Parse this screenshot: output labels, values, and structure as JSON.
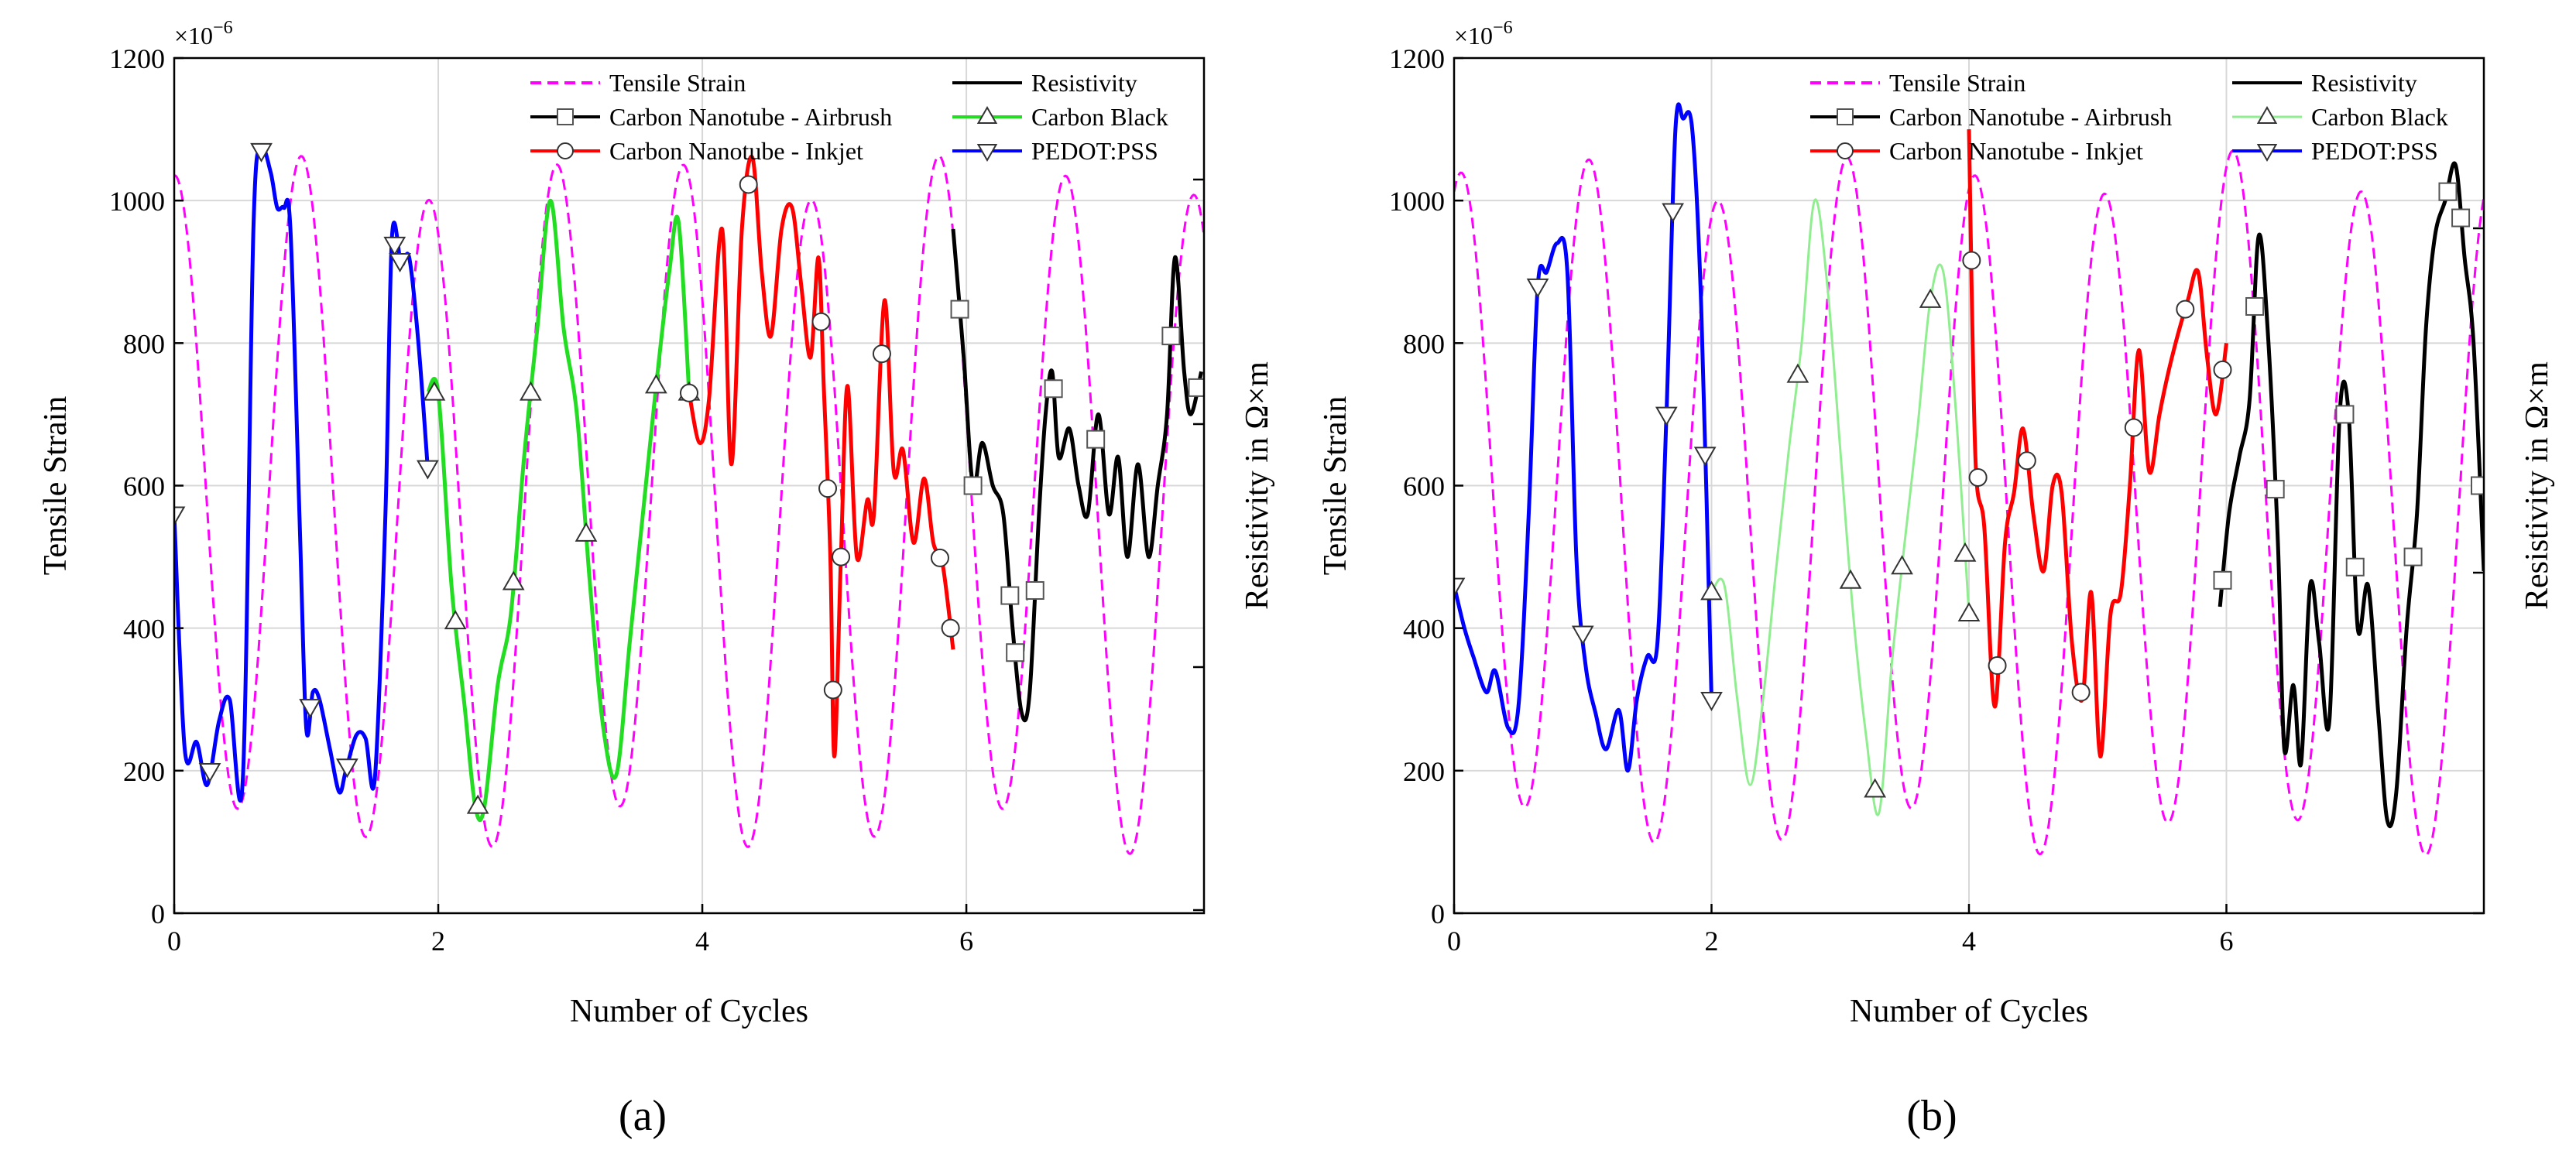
{
  "chart_data": [
    {
      "type": "line",
      "panel": "(a)",
      "xlabel": "Number of Cycles",
      "ylabel": "Tensile Strain",
      "y2label": "Resistivity in Ω×m",
      "y_multiplier": "×10",
      "y_multiplier_exp": "−6",
      "xlim": [
        0,
        7.8
      ],
      "ylim": [
        0,
        1200
      ],
      "x_ticks": [
        0,
        2,
        4,
        6
      ],
      "y_ticks": [
        0,
        200,
        400,
        600,
        800,
        1000,
        1200
      ],
      "grid": true,
      "legend": [
        {
          "label": "Tensile Strain",
          "color": "#ff00ff",
          "style": "dashed",
          "marker": "none"
        },
        {
          "label": "Resistivity",
          "color": "#000000",
          "style": "solid",
          "marker": "none"
        },
        {
          "label": "Carbon Nanotube - Airbrush",
          "color": "#000000",
          "style": "solid",
          "marker": "square"
        },
        {
          "label": "Carbon Black",
          "color": "#22dd22",
          "style": "solid",
          "marker": "triangle-up"
        },
        {
          "label": "Carbon Nanotube - Inkjet",
          "color": "#ff0000",
          "style": "solid",
          "marker": "circle"
        },
        {
          "label": "PEDOT:PSS",
          "color": "#0000ff",
          "style": "solid",
          "marker": "triangle-down"
        }
      ],
      "tensile": {
        "color": "#ff00ff",
        "amplitude": 460,
        "offset": 575,
        "period": 0.965,
        "phase": 0.0,
        "extra_amp": 35
      },
      "series": [
        {
          "name": "PEDOT:PSS",
          "color": "#0000ff",
          "marker": "triangle-down",
          "x": [
            0,
            0.08,
            0.17,
            0.25,
            0.34,
            0.42,
            0.52,
            0.6,
            0.66,
            0.73,
            0.78,
            0.83,
            0.88,
            0.95,
            1.0,
            1.05,
            1.1,
            1.18,
            1.25,
            1.3,
            1.38,
            1.45,
            1.52,
            1.6,
            1.65,
            1.72,
            1.78,
            1.85,
            1.92
          ],
          "values": [
            560,
            230,
            240,
            180,
            270,
            300,
            190,
            960,
            1070,
            1040,
            990,
            990,
            960,
            550,
            260,
            310,
            300,
            230,
            170,
            200,
            250,
            245,
            190,
            560,
            950,
            910,
            920,
            800,
            625
          ],
          "marker_x": [
            0,
            0.27,
            0.66,
            1.03,
            1.31,
            1.67,
            1.71,
            1.92
          ]
        },
        {
          "name": "Carbon Black",
          "color": "#22dd22",
          "marker": "triangle-up",
          "x": [
            1.92,
            2.0,
            2.1,
            2.2,
            2.28,
            2.35,
            2.45,
            2.55,
            2.65,
            2.75,
            2.85,
            2.95,
            3.05,
            3.15,
            3.25,
            3.35,
            3.45,
            3.55,
            3.65,
            3.75,
            3.82,
            3.9
          ],
          "values": [
            730,
            730,
            460,
            290,
            150,
            150,
            320,
            420,
            640,
            820,
            1000,
            820,
            700,
            460,
            260,
            195,
            380,
            560,
            740,
            900,
            970,
            730
          ],
          "marker_x": [
            1.97,
            2.13,
            2.3,
            2.57,
            2.7,
            3.12,
            3.65,
            3.9
          ]
        },
        {
          "name": "Carbon Nanotube - Inkjet",
          "color": "#ff0000",
          "marker": "circle",
          "x": [
            3.9,
            3.98,
            4.05,
            4.15,
            4.22,
            4.3,
            4.38,
            4.45,
            4.52,
            4.6,
            4.68,
            4.75,
            4.82,
            4.88,
            4.92,
            4.97,
            5.0,
            5.05,
            5.1,
            5.17,
            5.25,
            5.3,
            5.38,
            5.45,
            5.52,
            5.6,
            5.68,
            5.75,
            5.82,
            5.9
          ],
          "values": [
            730,
            660,
            720,
            960,
            630,
            960,
            1060,
            900,
            810,
            960,
            990,
            880,
            780,
            920,
            740,
            500,
            220,
            500,
            740,
            500,
            580,
            560,
            860,
            620,
            650,
            520,
            610,
            520,
            490,
            370
          ],
          "marker_x": [
            3.9,
            4.35,
            4.9,
            4.95,
            4.99,
            5.05,
            5.36,
            5.8,
            5.88
          ]
        },
        {
          "name": "Carbon Nanotube - Airbrush",
          "color": "#000000",
          "marker": "square",
          "x": [
            5.9,
            5.98,
            6.05,
            6.12,
            6.2,
            6.28,
            6.35,
            6.42,
            6.48,
            6.55,
            6.6,
            6.65,
            6.7,
            6.78,
            6.85,
            6.92,
            7.0,
            7.08,
            7.15,
            7.22,
            7.3,
            7.38,
            7.45,
            7.52,
            7.58,
            7.65,
            7.7,
            7.78
          ],
          "values": [
            960,
            780,
            600,
            660,
            600,
            560,
            400,
            280,
            310,
            560,
            700,
            760,
            640,
            680,
            600,
            560,
            700,
            560,
            640,
            500,
            630,
            500,
            600,
            700,
            920,
            760,
            700,
            760
          ],
          "marker_x": [
            5.95,
            6.05,
            6.33,
            6.37,
            6.52,
            6.66,
            6.98,
            7.55,
            7.75
          ]
        }
      ]
    },
    {
      "type": "line",
      "panel": "(b)",
      "xlabel": "Number of Cycles",
      "ylabel": "Tensile Strain",
      "y2label": "Resistivity in Ω×m",
      "y_multiplier": "×10",
      "y_multiplier_exp": "−6",
      "xlim": [
        0,
        8.0
      ],
      "ylim": [
        0,
        1200
      ],
      "x_ticks": [
        0,
        2,
        4,
        6
      ],
      "y_ticks": [
        0,
        200,
        400,
        600,
        800,
        1000,
        1200
      ],
      "grid": true,
      "legend": [
        {
          "label": "Tensile Strain",
          "color": "#ff00ff",
          "style": "dashed",
          "marker": "none"
        },
        {
          "label": "Resistivity",
          "color": "#000000",
          "style": "solid",
          "marker": "none"
        },
        {
          "label": "Carbon Nanotube - Airbrush",
          "color": "#000000",
          "style": "solid",
          "marker": "square"
        },
        {
          "label": "Carbon Black",
          "color": "#90ee90",
          "style": "solid",
          "marker": "triangle-up"
        },
        {
          "label": "Carbon Nanotube - Inkjet",
          "color": "#ff0000",
          "style": "solid",
          "marker": "circle"
        },
        {
          "label": "PEDOT:PSS",
          "color": "#0000ff",
          "style": "solid",
          "marker": "triangle-down"
        }
      ],
      "tensile": {
        "color": "#ff00ff",
        "amplitude": 460,
        "offset": 575,
        "period": 1.0,
        "phase": 0.05,
        "extra_amp": 35
      },
      "series": [
        {
          "name": "PEDOT:PSS",
          "color": "#0000ff",
          "marker": "triangle-down",
          "x": [
            0,
            0.08,
            0.15,
            0.25,
            0.32,
            0.42,
            0.5,
            0.58,
            0.65,
            0.72,
            0.8,
            0.88,
            0.95,
            1.02,
            1.1,
            1.18,
            1.28,
            1.35,
            1.42,
            1.5,
            1.58,
            1.65,
            1.72,
            1.78,
            1.85,
            1.92,
            2.0
          ],
          "values": [
            460,
            400,
            360,
            310,
            340,
            260,
            290,
            560,
            880,
            900,
            940,
            900,
            500,
            350,
            280,
            230,
            285,
            200,
            300,
            360,
            380,
            700,
            1100,
            1115,
            1100,
            850,
            300
          ],
          "marker_x": [
            0,
            0.65,
            1.0,
            1.65,
            1.7,
            1.95,
            2.0
          ]
        },
        {
          "name": "Carbon Black",
          "color": "#90ee90",
          "marker": "triangle-up",
          "x": [
            2.0,
            2.1,
            2.2,
            2.3,
            2.4,
            2.5,
            2.6,
            2.7,
            2.8,
            2.9,
            3.0,
            3.1,
            3.2,
            3.3,
            3.4,
            3.5,
            3.6,
            3.7,
            3.8,
            3.9,
            4.0
          ],
          "values": [
            450,
            460,
            300,
            180,
            300,
            480,
            650,
            800,
            1000,
            880,
            650,
            420,
            250,
            140,
            350,
            520,
            680,
            860,
            900,
            700,
            420
          ],
          "marker_x": [
            2.0,
            2.67,
            3.08,
            3.27,
            3.48,
            3.7,
            3.97,
            4.0
          ]
        },
        {
          "name": "Carbon Nanotube - Inkjet",
          "color": "#ff0000",
          "marker": "circle",
          "x": [
            4.0,
            4.05,
            4.12,
            4.2,
            4.28,
            4.35,
            4.42,
            4.5,
            4.58,
            4.65,
            4.72,
            4.8,
            4.88,
            4.95,
            5.02,
            5.1,
            5.18,
            5.25,
            5.32,
            5.4,
            5.48,
            5.55,
            5.62,
            5.7,
            5.78,
            5.85,
            5.92,
            6.0
          ],
          "values": [
            1100,
            640,
            540,
            290,
            520,
            590,
            680,
            560,
            480,
            600,
            590,
            380,
            300,
            450,
            220,
            420,
            450,
            600,
            790,
            620,
            700,
            760,
            810,
            860,
            900,
            780,
            700,
            800
          ],
          "marker_x": [
            4.02,
            4.07,
            4.22,
            4.45,
            4.87,
            5.28,
            5.68,
            5.97
          ]
        },
        {
          "name": "Carbon Nanotube - Airbrush",
          "color": "#000000",
          "marker": "square",
          "x": [
            5.95,
            6.02,
            6.1,
            6.18,
            6.25,
            6.32,
            6.4,
            6.45,
            6.52,
            6.58,
            6.65,
            6.72,
            6.8,
            6.88,
            6.95,
            7.02,
            7.1,
            7.18,
            7.25,
            7.32,
            7.4,
            7.48,
            7.55,
            7.62,
            7.7,
            7.78,
            7.85,
            7.92,
            8.0
          ],
          "values": [
            430,
            560,
            640,
            720,
            950,
            820,
            520,
            230,
            320,
            210,
            460,
            380,
            270,
            700,
            700,
            400,
            460,
            280,
            130,
            170,
            400,
            560,
            820,
            950,
            1000,
            1050,
            920,
            800,
            480
          ],
          "marker_x": [
            5.97,
            6.22,
            6.38,
            6.92,
            7.0,
            7.45,
            7.72,
            7.82,
            7.97
          ]
        }
      ]
    }
  ],
  "panel_labels": [
    "(a)",
    "(b)"
  ]
}
